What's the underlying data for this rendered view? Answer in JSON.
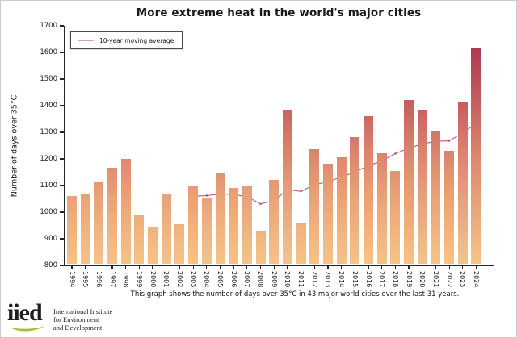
{
  "title": "More extreme heat in the world's major cities",
  "legend": {
    "label": "10-year moving average"
  },
  "y_axis": {
    "label": "Number of days over 35°C"
  },
  "caption": "This graph shows the number of days over 35°C in 43 major world cities over the last 31 years.",
  "logo": {
    "wordmark": "iied",
    "org_lines": [
      "International Institute",
      "for Environment",
      "and Development"
    ]
  },
  "colors": {
    "line": "#b25f6b",
    "line_marker": "#a04f5e",
    "legend_line": "#d9a2ad",
    "axis": "#262626",
    "logo_green": "#a9bf3f",
    "bar_gradient_stops": [
      [
        800,
        "#f6c388"
      ],
      [
        1000,
        "#edaa7a"
      ],
      [
        1200,
        "#dd886e"
      ],
      [
        1400,
        "#c65f5f"
      ],
      [
        1600,
        "#b23a51"
      ],
      [
        1700,
        "#a82f4c"
      ]
    ]
  },
  "chart_data": {
    "type": "bar",
    "title": "More extreme heat in the world's major cities",
    "xlabel": "",
    "ylabel": "Number of days over 35°C",
    "ylim": [
      800,
      1700
    ],
    "y_ticks": [
      800,
      900,
      1000,
      1100,
      1200,
      1300,
      1400,
      1500,
      1600,
      1700
    ],
    "grid": false,
    "legend_position": "top-left",
    "categories": [
      "1994",
      "1995",
      "1996",
      "1997",
      "1998",
      "1999",
      "2000",
      "2001",
      "2002",
      "2003",
      "2004",
      "2005",
      "2006",
      "2007",
      "2008",
      "2009",
      "2010",
      "2011",
      "2012",
      "2013",
      "2014",
      "2015",
      "2016",
      "2017",
      "2018",
      "2019",
      "2020",
      "2021",
      "2022",
      "2023",
      "2024"
    ],
    "series": [
      {
        "name": "Number of days over 35°C",
        "type": "bar",
        "values": [
          1055,
          1060,
          1105,
          1160,
          1195,
          985,
          935,
          1065,
          950,
          1095,
          1045,
          1140,
          1085,
          1090,
          925,
          1115,
          1380,
          955,
          1230,
          1175,
          1200,
          1275,
          1355,
          1215,
          1150,
          1415,
          1380,
          1300,
          1225,
          1410,
          1610
        ]
      },
      {
        "name": "10-year moving average",
        "type": "line",
        "start_category": "2003",
        "values": [
          1060,
          1062,
          1068,
          1067,
          1058,
          1031,
          1044,
          1085,
          1078,
          1103,
          1114,
          1132,
          1150,
          1175,
          1192,
          1220,
          1240,
          1257,
          1266,
          1268,
          1298,
          1333
        ]
      }
    ]
  }
}
